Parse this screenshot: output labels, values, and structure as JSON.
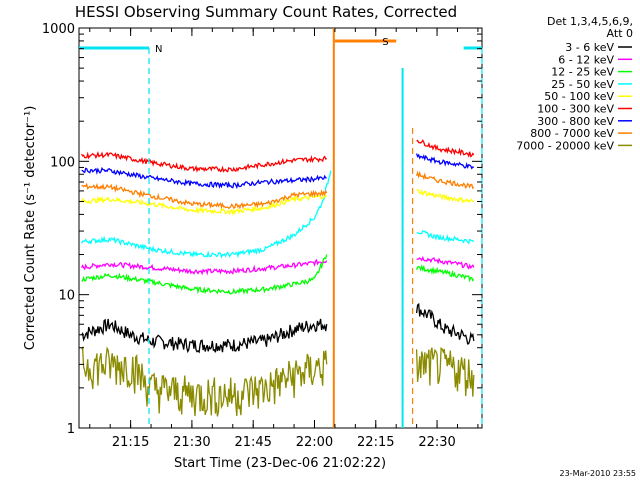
{
  "chart_data": {
    "type": "line",
    "title": "HESSI Observing Summary Count Rates, Corrected",
    "xlabel": "Start Time (23-Dec-06 21:02:22)",
    "ylabel": "Corrected Count Rate (s⁻¹ detector⁻¹)",
    "yscale": "log",
    "ylim": [
      1,
      1000
    ],
    "xlim": [
      "21:02:22",
      "22:41:00"
    ],
    "x_ticks": [
      "21:15",
      "21:30",
      "21:45",
      "22:00",
      "22:15",
      "22:30"
    ],
    "y_ticks": [
      "1",
      "10",
      "100",
      "1000"
    ],
    "legend_header": [
      "Det 1,3,4,5,6,9,",
      "Att 0"
    ],
    "legend_position": "right",
    "footer_timestamp": "23-Mar-2010 23:55",
    "flags": [
      {
        "label": "N",
        "color": "#00e5ee",
        "segments": [
          [
            "21:02:22",
            "21:19:30"
          ],
          [
            "22:36:30",
            "22:41:00"
          ]
        ]
      },
      {
        "label": "S",
        "color": "#ff7f00",
        "segments": [
          [
            "22:05:00",
            "22:20:00"
          ]
        ]
      }
    ],
    "data_gap": [
      "22:04:00",
      "22:24:30"
    ],
    "series": [
      {
        "name": "3 - 6 keV",
        "color": "#000000",
        "x": [
          "21:03",
          "21:10",
          "21:15",
          "21:20",
          "21:30",
          "21:40",
          "21:48",
          "21:55",
          "22:00",
          "22:03",
          "22:25",
          "22:28",
          "22:32",
          "22:36",
          "22:39"
        ],
        "values": [
          5,
          6,
          5,
          4.5,
          4.2,
          4.2,
          4.5,
          5.5,
          6,
          6,
          8,
          7,
          5.5,
          5,
          4.5
        ]
      },
      {
        "name": "6 - 12 keV",
        "color": "#ff00ff",
        "x": [
          "21:03",
          "21:10",
          "21:20",
          "21:30",
          "21:40",
          "21:50",
          "21:58",
          "22:03",
          "22:25",
          "22:30",
          "22:35",
          "22:39"
        ],
        "values": [
          16,
          17,
          16,
          15,
          15,
          16,
          17,
          18,
          19,
          18,
          17,
          16
        ]
      },
      {
        "name": "12 - 25 keV",
        "color": "#00ff00",
        "x": [
          "21:03",
          "21:10",
          "21:20",
          "21:30",
          "21:40",
          "21:48",
          "21:55",
          "22:00",
          "22:03",
          "22:25",
          "22:30",
          "22:35",
          "22:39"
        ],
        "values": [
          13,
          14,
          12.5,
          11,
          10.5,
          11,
          12,
          13,
          20,
          16,
          15,
          14,
          13
        ]
      },
      {
        "name": "25 - 50 keV",
        "color": "#00ffff",
        "x": [
          "21:03",
          "21:10",
          "21:20",
          "21:30",
          "21:40",
          "21:48",
          "21:55",
          "22:00",
          "22:02",
          "22:04",
          "22:25",
          "22:30",
          "22:35",
          "22:39"
        ],
        "values": [
          25,
          26,
          22,
          20,
          20,
          22,
          28,
          38,
          50,
          85,
          30,
          27,
          26,
          25
        ]
      },
      {
        "name": "50 - 100 keV",
        "color": "#ffff00",
        "x": [
          "21:03",
          "21:10",
          "21:20",
          "21:30",
          "21:40",
          "21:48",
          "21:55",
          "22:03",
          "22:25",
          "22:30",
          "22:35",
          "22:39"
        ],
        "values": [
          50,
          52,
          48,
          43,
          42,
          45,
          52,
          55,
          60,
          55,
          52,
          50
        ]
      },
      {
        "name": "100 - 300 keV",
        "color": "#ff0000",
        "x": [
          "21:03",
          "21:10",
          "21:20",
          "21:30",
          "21:40",
          "21:48",
          "21:55",
          "22:03",
          "22:25",
          "22:30",
          "22:35",
          "22:39"
        ],
        "values": [
          110,
          112,
          98,
          88,
          87,
          95,
          102,
          105,
          145,
          125,
          118,
          112
        ]
      },
      {
        "name": "300 - 800 keV",
        "color": "#0000ff",
        "x": [
          "21:03",
          "21:10",
          "21:20",
          "21:30",
          "21:40",
          "21:48",
          "21:55",
          "22:03",
          "22:25",
          "22:30",
          "22:35",
          "22:39"
        ],
        "values": [
          86,
          85,
          75,
          68,
          66,
          70,
          72,
          75,
          110,
          100,
          95,
          90
        ]
      },
      {
        "name": "800 - 7000 keV",
        "color": "#ff7f00",
        "x": [
          "21:03",
          "21:10",
          "21:20",
          "21:30",
          "21:40",
          "21:48",
          "21:55",
          "22:03",
          "22:25",
          "22:30",
          "22:35",
          "22:39"
        ],
        "values": [
          65,
          64,
          55,
          48,
          46,
          48,
          56,
          58,
          80,
          72,
          68,
          64
        ]
      },
      {
        "name": "7000 - 20000 keV",
        "color": "#8b8b00",
        "x": [
          "21:03",
          "21:15",
          "21:20",
          "21:30",
          "21:40",
          "21:48",
          "21:55",
          "22:03",
          "22:25",
          "22:30",
          "22:35",
          "22:39"
        ],
        "values": [
          3,
          3,
          2,
          1.8,
          1.8,
          2,
          2.5,
          3,
          3,
          3,
          2.8,
          2.5
        ]
      }
    ]
  }
}
